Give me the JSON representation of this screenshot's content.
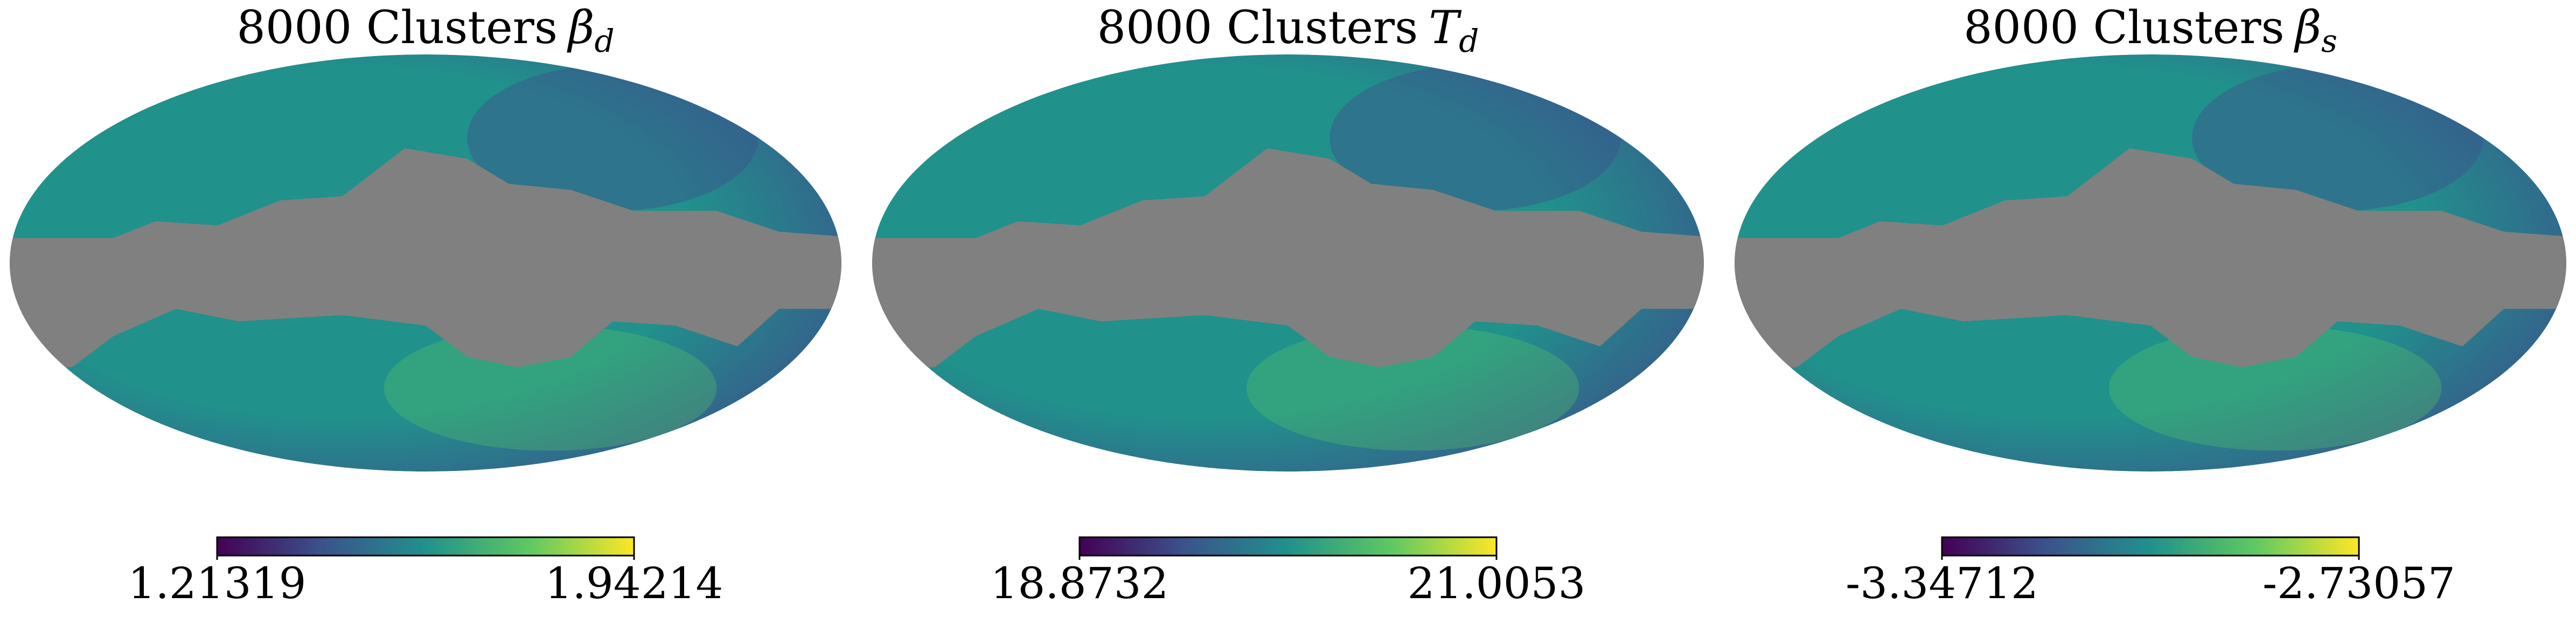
{
  "chart_data": [
    {
      "type": "map",
      "title": "8000 Clusters",
      "symbol": "β",
      "subscript": "d",
      "clim": [
        1.21319,
        1.94214
      ],
      "cticks": [
        1.21319,
        1.94214
      ],
      "colormap": [
        "#440154",
        "#3b528b",
        "#21918c",
        "#5ec962",
        "#fde725"
      ],
      "mask_color": "#808080"
    },
    {
      "type": "map",
      "title": "8000 Clusters",
      "symbol": "T",
      "subscript": "d",
      "clim": [
        18.8732,
        21.0053
      ],
      "cticks": [
        18.8732,
        21.0053
      ],
      "colormap": [
        "#440154",
        "#3b528b",
        "#21918c",
        "#5ec962",
        "#fde725"
      ],
      "mask_color": "#808080"
    },
    {
      "type": "map",
      "title": "8000 Clusters",
      "symbol": "β",
      "subscript": "s",
      "clim": [
        -3.34712,
        -2.73057
      ],
      "cticks": [
        -3.34712,
        -2.73057
      ],
      "colormap": [
        "#440154",
        "#3b528b",
        "#21918c",
        "#5ec962",
        "#fde725"
      ],
      "mask_color": "#808080"
    }
  ]
}
